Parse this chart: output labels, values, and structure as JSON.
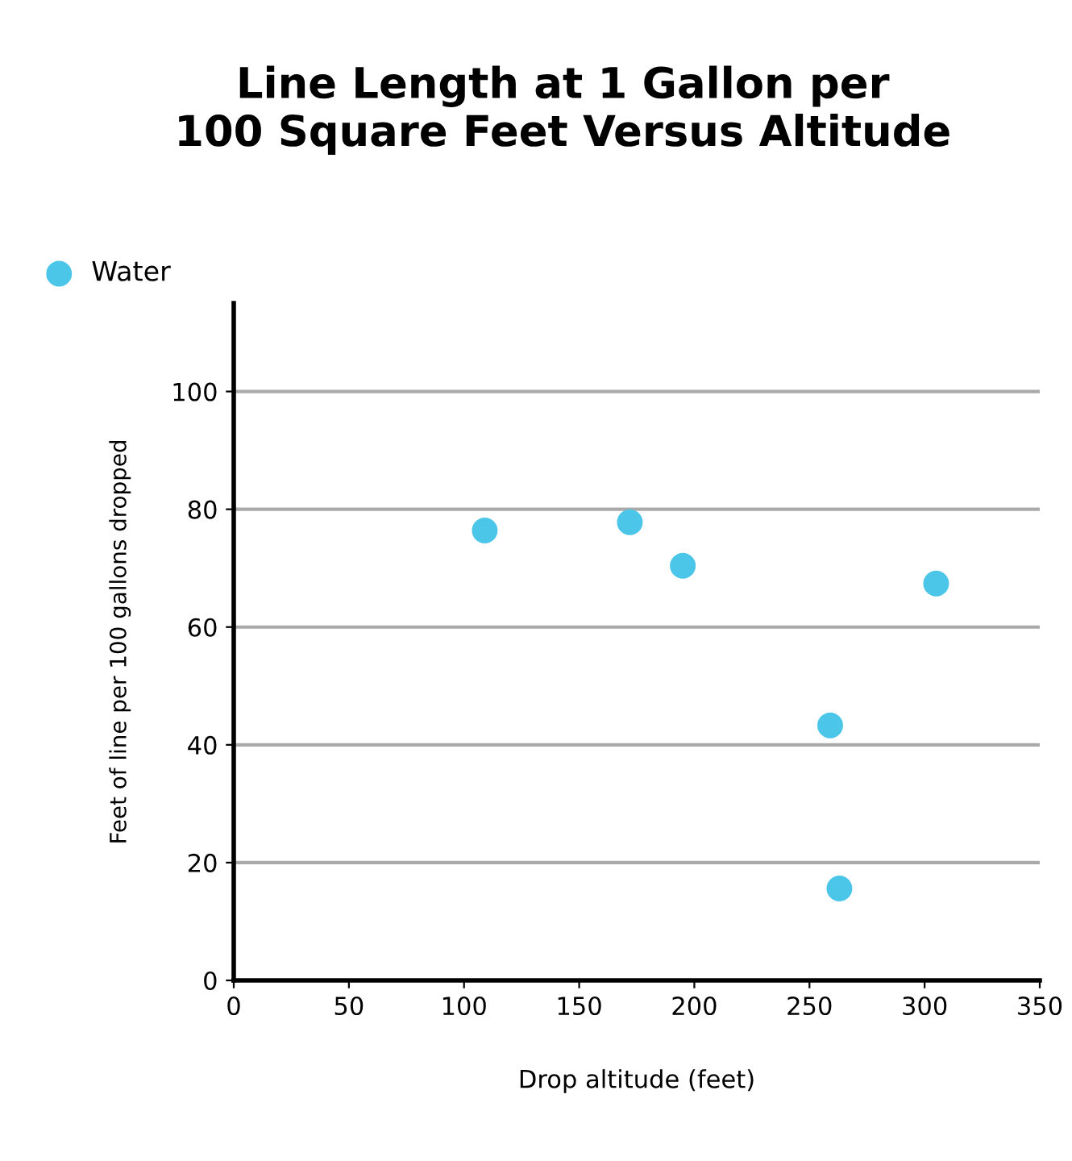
{
  "chart_data": {
    "type": "scatter",
    "title": "Line Length at 1 Gallon per\n100 Square Feet Versus Altitude",
    "xlabel": "Drop altitude (feet)",
    "ylabel": "Feet of line per 100 gallons dropped",
    "series": [
      {
        "name": "Water",
        "color": "#4cc6e8",
        "x": [
          109,
          172,
          195,
          259,
          263,
          305
        ],
        "values": [
          76.4,
          77.8,
          70.4,
          43.3,
          15.6,
          67.4
        ]
      }
    ],
    "xlim": [
      0,
      350
    ],
    "xticks": [
      0,
      50,
      100,
      150,
      200,
      250,
      300,
      350
    ],
    "ylim": [
      0,
      115
    ],
    "yticks": [
      0,
      20,
      40,
      60,
      80,
      100
    ],
    "grid": "y",
    "legend": "top left",
    "marker": "circle"
  }
}
